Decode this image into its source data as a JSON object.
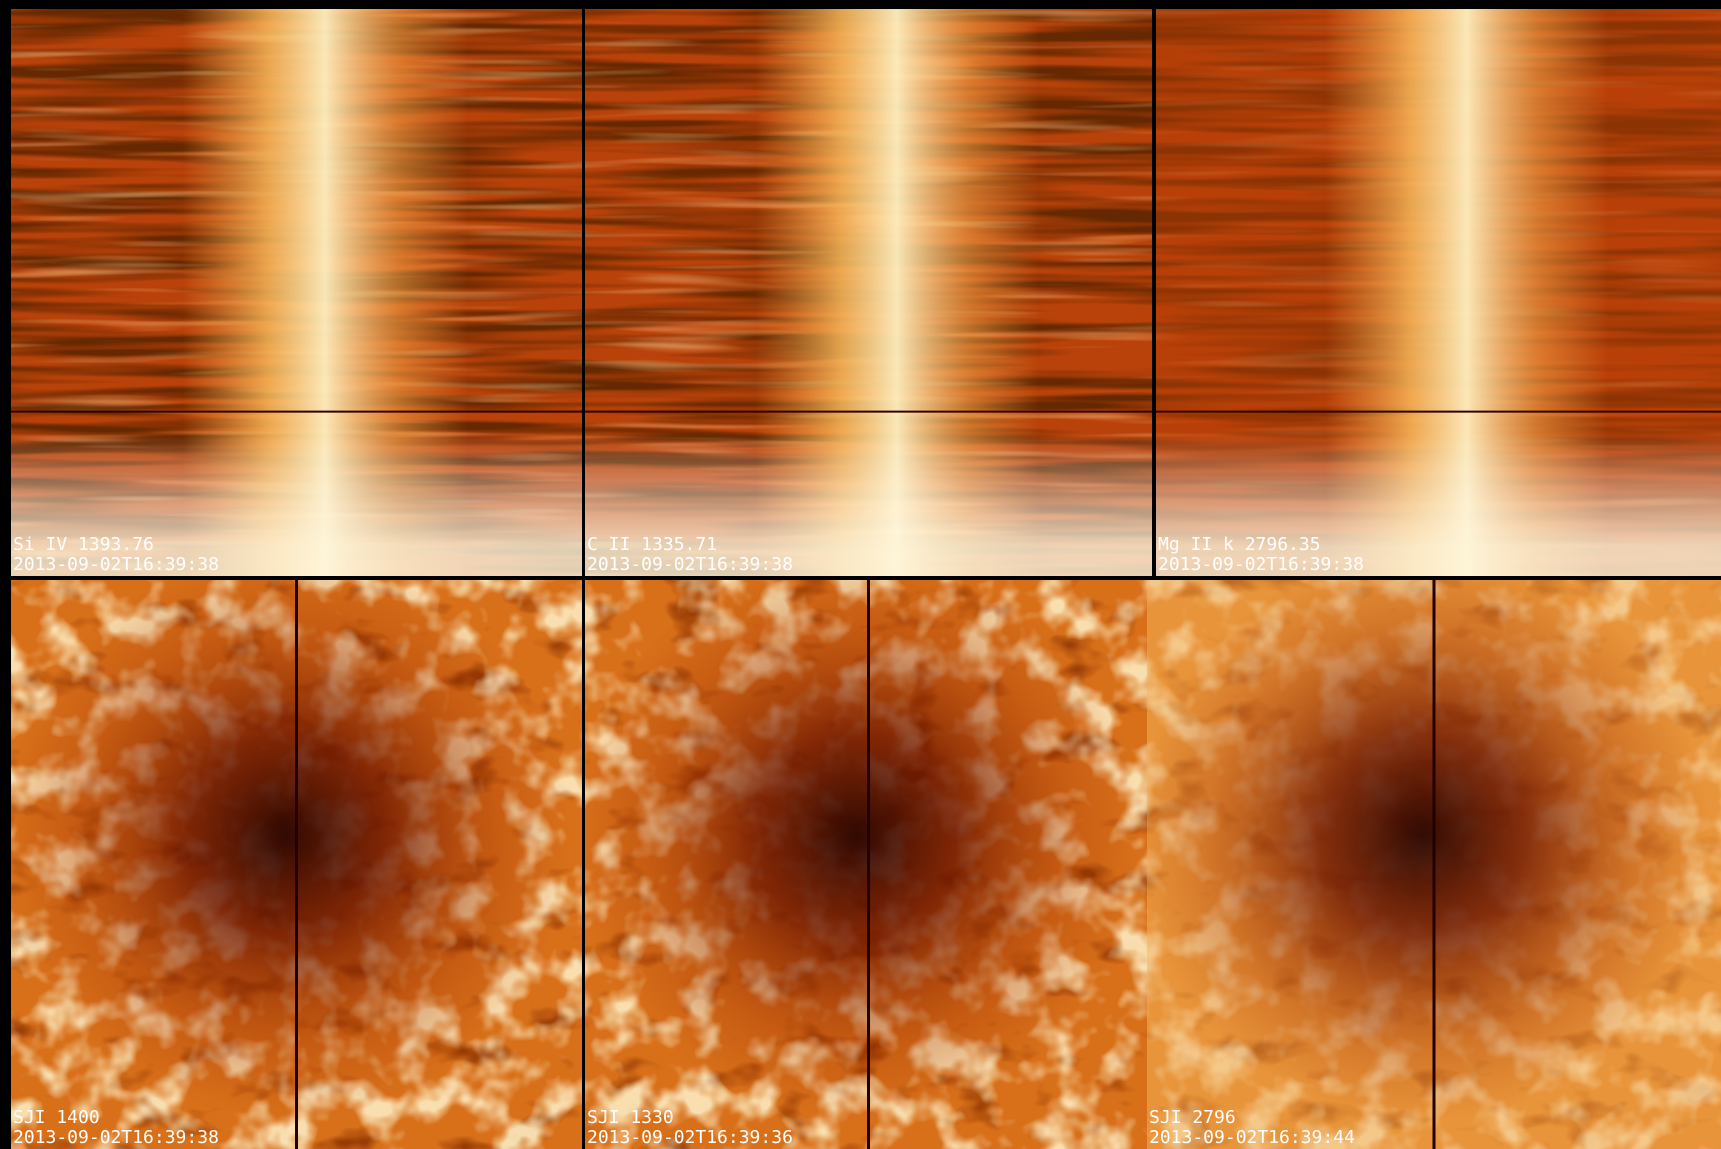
{
  "panels": [
    {
      "label": "Si IV 1393.76",
      "time": "2013-09-02T16:39:38"
    },
    {
      "label": "C II 1335.71",
      "time": "2013-09-02T16:39:38"
    },
    {
      "label": "Mg II k 2796.35",
      "time": "2013-09-02T16:39:38"
    },
    {
      "label": "SJI 1400",
      "time": "2013-09-02T16:39:38"
    },
    {
      "label": "SJI 1330",
      "time": "2013-09-02T16:39:36"
    },
    {
      "label": "SJI 2796",
      "time": "2013-09-02T16:39:44"
    }
  ]
}
